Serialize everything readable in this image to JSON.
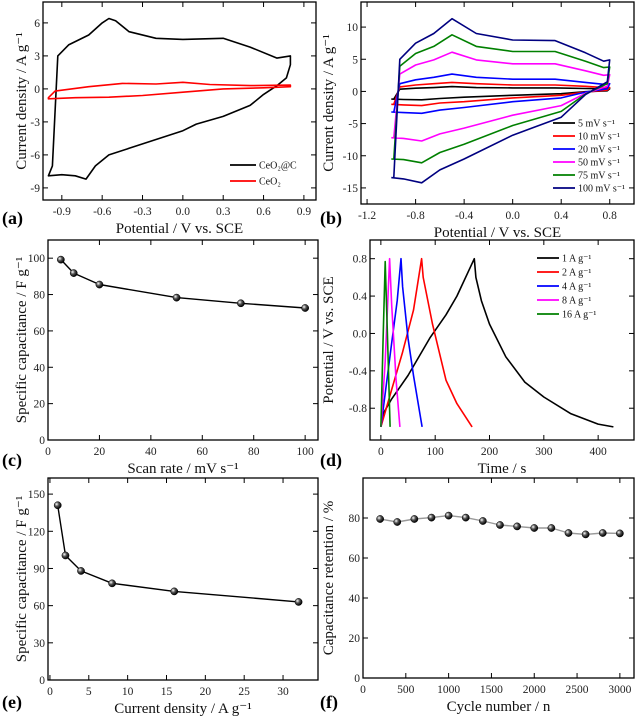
{
  "chart_data": [
    {
      "panel_label": "(a)",
      "type": "line",
      "xlabel": "Potential  / V vs. SCE",
      "ylabel": "Current density / A g⁻¹",
      "xlim": [
        -1.04,
        0.99
      ],
      "ylim": [
        -10.1,
        7.9
      ],
      "xticks": [
        -0.9,
        -0.6,
        -0.3,
        0.0,
        0.3,
        0.6,
        0.9
      ],
      "xtick_labels": [
        "-0.9",
        "-0.6",
        "-0.3",
        "0.0",
        "0.3",
        "0.6",
        "0.9"
      ],
      "yticks": [
        -9,
        -6,
        -3,
        0,
        3,
        6
      ],
      "ytick_labels": [
        "-9",
        "-6",
        "-3",
        "0",
        "3",
        "6"
      ],
      "grid": false,
      "legend_position": "bottom-right",
      "series": [
        {
          "name": "CeO₂@C",
          "color": "#000000",
          "closed": true,
          "points": [
            [
              -0.97,
              -7.0
            ],
            [
              -0.93,
              3.0
            ],
            [
              -0.85,
              4.0
            ],
            [
              -0.7,
              4.9
            ],
            [
              -0.6,
              6.0
            ],
            [
              -0.55,
              6.4
            ],
            [
              -0.5,
              6.2
            ],
            [
              -0.4,
              5.2
            ],
            [
              -0.2,
              4.6
            ],
            [
              0.0,
              4.5
            ],
            [
              0.3,
              4.6
            ],
            [
              0.5,
              3.8
            ],
            [
              0.7,
              2.8
            ],
            [
              0.8,
              3.0
            ],
            [
              0.8,
              2.2
            ],
            [
              0.77,
              1.0
            ],
            [
              0.7,
              0.3
            ],
            [
              0.6,
              -0.5
            ],
            [
              0.5,
              -1.5
            ],
            [
              0.3,
              -2.5
            ],
            [
              0.1,
              -3.2
            ],
            [
              0.0,
              -3.8
            ],
            [
              -0.2,
              -4.6
            ],
            [
              -0.4,
              -5.4
            ],
            [
              -0.55,
              -6.0
            ],
            [
              -0.65,
              -7.0
            ],
            [
              -0.72,
              -8.2
            ],
            [
              -0.8,
              -7.9
            ],
            [
              -0.9,
              -7.8
            ],
            [
              -1.0,
              -7.9
            ]
          ]
        },
        {
          "name": "CeO₂",
          "color": "#ff0000",
          "closed": true,
          "points": [
            [
              -1.0,
              -0.8
            ],
            [
              -0.95,
              -0.2
            ],
            [
              -0.7,
              0.2
            ],
            [
              -0.45,
              0.5
            ],
            [
              -0.2,
              0.45
            ],
            [
              0.0,
              0.6
            ],
            [
              0.2,
              0.4
            ],
            [
              0.5,
              0.3
            ],
            [
              0.8,
              0.35
            ],
            [
              0.8,
              0.2
            ],
            [
              0.6,
              0.1
            ],
            [
              0.3,
              0.0
            ],
            [
              0.0,
              -0.3
            ],
            [
              -0.3,
              -0.6
            ],
            [
              -0.55,
              -0.75
            ],
            [
              -0.8,
              -0.8
            ],
            [
              -1.0,
              -0.9
            ]
          ]
        }
      ]
    },
    {
      "panel_label": "(b)",
      "type": "line",
      "xlabel": "Potential  / V vs. SCE",
      "ylabel": "Current density / A g⁻¹",
      "xlim": [
        -1.25,
        1.0
      ],
      "ylim": [
        -17.5,
        13.9
      ],
      "xticks": [
        -1.2,
        -0.8,
        -0.4,
        0.0,
        0.4,
        0.8
      ],
      "xtick_labels": [
        "-1.2",
        "-0.8",
        "-0.4",
        "0.0",
        "0.4",
        "0.8"
      ],
      "yticks": [
        -15,
        -10,
        -5,
        0,
        5,
        10
      ],
      "ytick_labels": [
        "-15",
        "-10",
        "-5",
        "0",
        "5",
        "10"
      ],
      "grid": false,
      "legend_position": "bottom-right",
      "x": [
        -0.98,
        -0.93,
        -0.8,
        -0.65,
        -0.5,
        -0.3,
        0.0,
        0.35,
        0.6,
        0.75,
        0.8,
        0.78,
        0.6,
        0.4,
        0.0,
        -0.4,
        -0.6,
        -0.75,
        -0.9,
        -1.0
      ],
      "series": [
        {
          "name": "5 mV s⁻¹",
          "color": "#000000",
          "y": [
            -1.2,
            0.35,
            0.5,
            0.6,
            0.75,
            0.6,
            0.55,
            0.55,
            0.45,
            0.4,
            0.4,
            0.1,
            -0.05,
            -0.35,
            -0.6,
            -0.9,
            -1.1,
            -1.3,
            -1.25,
            -1.2
          ]
        },
        {
          "name": "10 mV s⁻¹",
          "color": "#ff0000",
          "y": [
            -2.0,
            0.7,
            1.0,
            1.2,
            1.4,
            1.2,
            1.0,
            1.0,
            0.8,
            0.6,
            0.6,
            0.2,
            -0.1,
            -0.6,
            -1.0,
            -1.6,
            -1.8,
            -2.2,
            -2.1,
            -2.0
          ]
        },
        {
          "name": "20 mV s⁻¹",
          "color": "#0000ff",
          "y": [
            -3.2,
            1.2,
            1.8,
            2.2,
            2.7,
            2.2,
            1.9,
            1.9,
            1.4,
            1.1,
            1.2,
            0.4,
            -0.1,
            -1.0,
            -1.6,
            -2.5,
            -2.9,
            -3.4,
            -3.3,
            -3.2
          ]
        },
        {
          "name": "50 mV s⁻¹",
          "color": "#ff00ff",
          "y": [
            -7.2,
            2.7,
            4.1,
            4.9,
            6.1,
            4.9,
            4.3,
            4.3,
            3.2,
            2.5,
            2.6,
            0.8,
            -0.3,
            -2.2,
            -3.7,
            -5.7,
            -6.6,
            -7.7,
            -7.3,
            -7.2
          ]
        },
        {
          "name": "75 mV s⁻¹",
          "color": "#008000",
          "y": [
            -10.5,
            3.9,
            5.9,
            7.0,
            8.8,
            7.0,
            6.2,
            6.2,
            4.7,
            3.7,
            3.8,
            1.2,
            -0.4,
            -3.1,
            -5.3,
            -8.2,
            -9.5,
            -11.1,
            -10.6,
            -10.5
          ]
        },
        {
          "name": "100 mV s⁻¹",
          "color": "#000080",
          "y": [
            -13.4,
            5.0,
            7.5,
            9.0,
            11.3,
            9.0,
            8.0,
            7.9,
            6.0,
            4.7,
            4.9,
            1.5,
            -0.5,
            -4.0,
            -6.8,
            -10.5,
            -12.2,
            -14.2,
            -13.6,
            -13.4
          ]
        }
      ]
    },
    {
      "panel_label": "(c)",
      "type": "line",
      "xlabel": "Scan rate / mV s⁻¹",
      "ylabel": "Specific capacitance / F g⁻¹",
      "xlim": [
        0,
        105
      ],
      "ylim": [
        0,
        110
      ],
      "xticks": [
        0,
        20,
        40,
        60,
        80,
        100
      ],
      "xtick_labels": [
        "0",
        "20",
        "40",
        "60",
        "80",
        "100"
      ],
      "yticks": [
        0,
        20,
        40,
        60,
        80,
        100
      ],
      "ytick_labels": [
        "0",
        "20",
        "40",
        "60",
        "80",
        "100"
      ],
      "grid": false,
      "markers": true,
      "series": [
        {
          "color": "#000000",
          "x": [
            5,
            10,
            20,
            50,
            75,
            100
          ],
          "y": [
            99.2,
            91.8,
            85.5,
            78.3,
            75.2,
            72.6
          ]
        }
      ]
    },
    {
      "panel_label": "(d)",
      "type": "line",
      "xlabel": "Time / s",
      "ylabel": "Potential  / V vs. SCE",
      "xlim": [
        -20,
        466
      ],
      "ylim": [
        -1.14,
        1.0
      ],
      "xticks": [
        0,
        100,
        200,
        300,
        400
      ],
      "xtick_labels": [
        "0",
        "100",
        "200",
        "300",
        "400"
      ],
      "yticks": [
        -0.8,
        -0.4,
        0.0,
        0.4,
        0.8
      ],
      "ytick_labels": [
        "-0.8",
        "-0.4",
        "0.0",
        "0.4",
        "0.8"
      ],
      "grid": false,
      "legend_position": "top-right",
      "series": [
        {
          "name": "1 A g⁻¹",
          "color": "#000000",
          "points": [
            [
              0,
              -1.0
            ],
            [
              5,
              -0.85
            ],
            [
              20,
              -0.7
            ],
            [
              50,
              -0.45
            ],
            [
              90,
              -0.05
            ],
            [
              120,
              0.2
            ],
            [
              140,
              0.4
            ],
            [
              160,
              0.65
            ],
            [
              172,
              0.8
            ],
            [
              175,
              0.6
            ],
            [
              185,
              0.35
            ],
            [
              200,
              0.1
            ],
            [
              230,
              -0.25
            ],
            [
              265,
              -0.52
            ],
            [
              300,
              -0.68
            ],
            [
              350,
              -0.86
            ],
            [
              400,
              -0.97
            ],
            [
              428,
              -1.0
            ]
          ]
        },
        {
          "name": "2 A g⁻¹",
          "color": "#ff0000",
          "points": [
            [
              0,
              -1.0
            ],
            [
              20,
              -0.6
            ],
            [
              40,
              -0.2
            ],
            [
              60,
              0.25
            ],
            [
              75,
              0.8
            ],
            [
              78,
              0.6
            ],
            [
              95,
              0.1
            ],
            [
              120,
              -0.5
            ],
            [
              140,
              -0.75
            ],
            [
              168,
              -1.0
            ]
          ]
        },
        {
          "name": "4 A g⁻¹",
          "color": "#0000ff",
          "points": [
            [
              0,
              -1.0
            ],
            [
              10,
              -0.55
            ],
            [
              20,
              -0.1
            ],
            [
              30,
              0.35
            ],
            [
              37,
              0.8
            ],
            [
              40,
              0.5
            ],
            [
              50,
              -0.05
            ],
            [
              60,
              -0.45
            ],
            [
              76,
              -1.0
            ]
          ]
        },
        {
          "name": "8 A g⁻¹",
          "color": "#ff00ff",
          "points": [
            [
              0,
              -1.0
            ],
            [
              8,
              -0.3
            ],
            [
              16,
              0.8
            ],
            [
              20,
              0.3
            ],
            [
              28,
              -0.5
            ],
            [
              35,
              -1.0
            ]
          ]
        },
        {
          "name": "16 A g⁻¹",
          "color": "#008000",
          "points": [
            [
              0,
              -1.0
            ],
            [
              4,
              -0.1
            ],
            [
              8,
              0.77
            ],
            [
              12,
              0.0
            ],
            [
              17,
              -1.0
            ]
          ]
        }
      ]
    },
    {
      "panel_label": "(e)",
      "type": "line",
      "xlabel": "Current density / A g⁻¹",
      "ylabel": "Specific capacitance / F g⁻¹",
      "xlim": [
        -0.25,
        34.5
      ],
      "ylim": [
        0,
        163
      ],
      "xticks": [
        0,
        5,
        10,
        15,
        20,
        25,
        30
      ],
      "xtick_labels": [
        "0",
        "5",
        "10",
        "15",
        "20",
        "25",
        "30"
      ],
      "yticks": [
        0,
        30,
        60,
        90,
        120,
        150
      ],
      "ytick_labels": [
        "0",
        "30",
        "60",
        "90",
        "120",
        "150"
      ],
      "grid": false,
      "markers": true,
      "series": [
        {
          "color": "#000000",
          "x": [
            1,
            2,
            4,
            8,
            16,
            32
          ],
          "y": [
            141,
            100.5,
            88,
            78,
            71.5,
            63
          ]
        }
      ]
    },
    {
      "panel_label": "(f)",
      "type": "line",
      "xlabel": "Cycle number / n",
      "ylabel": "Capacitance retention / %",
      "xlim": [
        0,
        3165
      ],
      "ylim": [
        0,
        100
      ],
      "xticks": [
        0,
        500,
        1000,
        1500,
        2000,
        2500,
        3000
      ],
      "xtick_labels": [
        "0",
        "500",
        "1000",
        "1500",
        "2000",
        "2500",
        "3000"
      ],
      "yticks": [
        0,
        20,
        40,
        60,
        80
      ],
      "ytick_labels": [
        "0",
        "20",
        "40",
        "60",
        "80"
      ],
      "grid": false,
      "markers": true,
      "series": [
        {
          "color": "#999999",
          "x": [
            200,
            400,
            600,
            800,
            1000,
            1200,
            1400,
            1600,
            1800,
            2000,
            2200,
            2400,
            2600,
            2800,
            3000
          ],
          "y": [
            79.5,
            78,
            79.5,
            80.2,
            81.2,
            80.2,
            78.5,
            76.5,
            75.8,
            75,
            75,
            72.5,
            71.8,
            72.5,
            72.3
          ]
        }
      ]
    }
  ]
}
